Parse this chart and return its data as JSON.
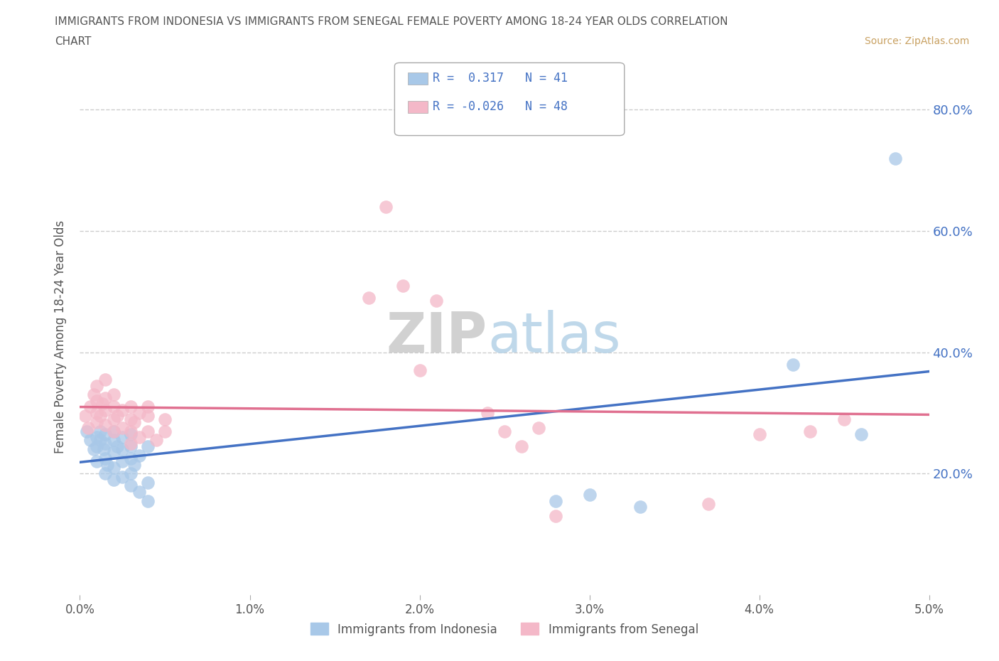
{
  "title_line1": "IMMIGRANTS FROM INDONESIA VS IMMIGRANTS FROM SENEGAL FEMALE POVERTY AMONG 18-24 YEAR OLDS CORRELATION",
  "title_line2": "CHART",
  "source": "Source: ZipAtlas.com",
  "ylabel": "Female Poverty Among 18-24 Year Olds",
  "xlim": [
    0.0,
    0.05
  ],
  "ylim": [
    0.0,
    0.85
  ],
  "yticks": [
    0.0,
    0.2,
    0.4,
    0.6,
    0.8
  ],
  "xticks": [
    0.0,
    0.01,
    0.02,
    0.03,
    0.04,
    0.05
  ],
  "xtick_labels": [
    "0.0%",
    "1.0%",
    "2.0%",
    "3.0%",
    "4.0%",
    "5.0%"
  ],
  "ytick_labels_right": [
    "",
    "20.0%",
    "40.0%",
    "60.0%",
    "80.0%"
  ],
  "legend_entries": [
    {
      "label": "Immigrants from Indonesia",
      "color": "#a8c8e8",
      "R": " 0.317",
      "N": "41"
    },
    {
      "label": "Immigrants from Senegal",
      "color": "#f4b8c8",
      "R": "-0.026",
      "N": "48"
    }
  ],
  "indonesia_color": "#a8c8e8",
  "senegal_color": "#f4b8c8",
  "indonesia_line_color": "#4472c4",
  "senegal_line_color": "#e07090",
  "watermark_zip": "ZIP",
  "watermark_atlas": "atlas",
  "indonesia_points": [
    [
      0.0004,
      0.27
    ],
    [
      0.0006,
      0.255
    ],
    [
      0.0008,
      0.24
    ],
    [
      0.001,
      0.26
    ],
    [
      0.001,
      0.245
    ],
    [
      0.001,
      0.22
    ],
    [
      0.0012,
      0.27
    ],
    [
      0.0012,
      0.255
    ],
    [
      0.0014,
      0.24
    ],
    [
      0.0015,
      0.265
    ],
    [
      0.0015,
      0.25
    ],
    [
      0.0015,
      0.225
    ],
    [
      0.0015,
      0.2
    ],
    [
      0.0016,
      0.215
    ],
    [
      0.002,
      0.27
    ],
    [
      0.002,
      0.255
    ],
    [
      0.002,
      0.235
    ],
    [
      0.002,
      0.21
    ],
    [
      0.002,
      0.19
    ],
    [
      0.0022,
      0.245
    ],
    [
      0.0025,
      0.26
    ],
    [
      0.0025,
      0.24
    ],
    [
      0.0025,
      0.22
    ],
    [
      0.0025,
      0.195
    ],
    [
      0.003,
      0.265
    ],
    [
      0.003,
      0.245
    ],
    [
      0.003,
      0.225
    ],
    [
      0.003,
      0.2
    ],
    [
      0.003,
      0.18
    ],
    [
      0.0032,
      0.215
    ],
    [
      0.0035,
      0.23
    ],
    [
      0.0035,
      0.17
    ],
    [
      0.004,
      0.245
    ],
    [
      0.004,
      0.185
    ],
    [
      0.004,
      0.155
    ],
    [
      0.028,
      0.155
    ],
    [
      0.03,
      0.165
    ],
    [
      0.033,
      0.145
    ],
    [
      0.042,
      0.38
    ],
    [
      0.046,
      0.265
    ],
    [
      0.048,
      0.72
    ]
  ],
  "senegal_points": [
    [
      0.0003,
      0.295
    ],
    [
      0.0005,
      0.275
    ],
    [
      0.0006,
      0.31
    ],
    [
      0.0008,
      0.33
    ],
    [
      0.001,
      0.285
    ],
    [
      0.001,
      0.3
    ],
    [
      0.001,
      0.32
    ],
    [
      0.001,
      0.345
    ],
    [
      0.0012,
      0.295
    ],
    [
      0.0013,
      0.315
    ],
    [
      0.0015,
      0.28
    ],
    [
      0.0015,
      0.305
    ],
    [
      0.0015,
      0.325
    ],
    [
      0.0015,
      0.355
    ],
    [
      0.002,
      0.29
    ],
    [
      0.002,
      0.27
    ],
    [
      0.002,
      0.31
    ],
    [
      0.002,
      0.33
    ],
    [
      0.0022,
      0.295
    ],
    [
      0.0025,
      0.275
    ],
    [
      0.0025,
      0.305
    ],
    [
      0.003,
      0.29
    ],
    [
      0.003,
      0.31
    ],
    [
      0.003,
      0.27
    ],
    [
      0.003,
      0.25
    ],
    [
      0.0032,
      0.285
    ],
    [
      0.0035,
      0.3
    ],
    [
      0.0035,
      0.26
    ],
    [
      0.004,
      0.31
    ],
    [
      0.004,
      0.295
    ],
    [
      0.004,
      0.27
    ],
    [
      0.0045,
      0.255
    ],
    [
      0.005,
      0.29
    ],
    [
      0.005,
      0.27
    ],
    [
      0.017,
      0.49
    ],
    [
      0.018,
      0.64
    ],
    [
      0.019,
      0.51
    ],
    [
      0.02,
      0.37
    ],
    [
      0.021,
      0.485
    ],
    [
      0.024,
      0.3
    ],
    [
      0.025,
      0.27
    ],
    [
      0.026,
      0.245
    ],
    [
      0.027,
      0.275
    ],
    [
      0.028,
      0.13
    ],
    [
      0.037,
      0.15
    ],
    [
      0.04,
      0.265
    ],
    [
      0.043,
      0.27
    ],
    [
      0.045,
      0.29
    ]
  ]
}
